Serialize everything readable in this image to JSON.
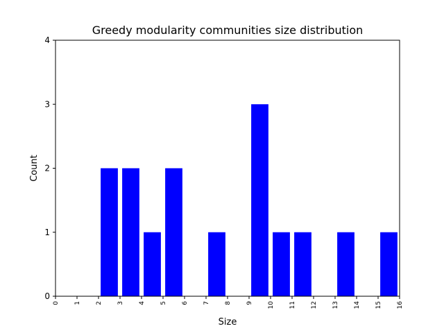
{
  "chart_data": {
    "type": "bar",
    "title": "Greedy modularity communities size distribution",
    "xlabel": "Size",
    "ylabel": "Count",
    "xlim": [
      0,
      16
    ],
    "ylim": [
      0,
      4
    ],
    "xticks": [
      "0",
      "1",
      "2",
      "3",
      "4",
      "5",
      "6",
      "7",
      "8",
      "9",
      "10",
      "11",
      "12",
      "13",
      "14",
      "15",
      "16"
    ],
    "yticks": [
      "0",
      "1",
      "2",
      "3",
      "4"
    ],
    "bar_color": "#0000ff",
    "bars": [
      {
        "x": 2,
        "value": 2
      },
      {
        "x": 3,
        "value": 2
      },
      {
        "x": 4,
        "value": 1
      },
      {
        "x": 5,
        "value": 2
      },
      {
        "x": 7,
        "value": 1
      },
      {
        "x": 9,
        "value": 3
      },
      {
        "x": 10,
        "value": 1
      },
      {
        "x": 11,
        "value": 1
      },
      {
        "x": 13,
        "value": 1
      },
      {
        "x": 15,
        "value": 1
      }
    ],
    "grid": false,
    "legend": "none"
  }
}
